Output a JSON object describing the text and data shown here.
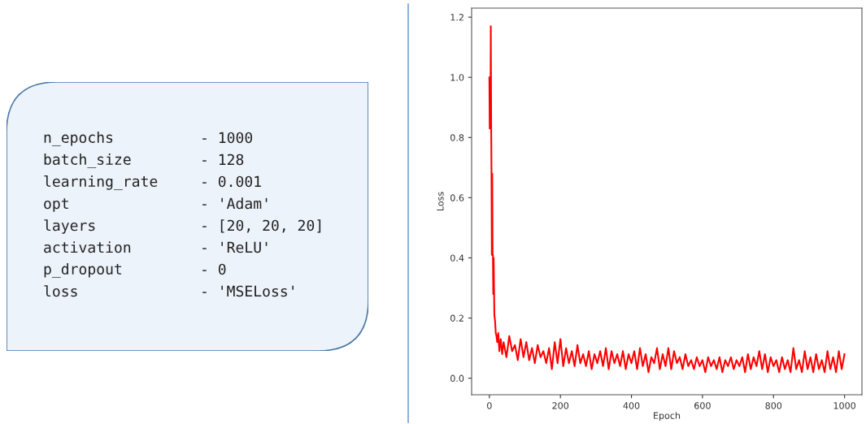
{
  "chart_data": [
    {
      "type": "other",
      "annotations": [
        "n_epochs",
        "- 1000",
        "batch_size",
        "- 128",
        "learning_rate",
        "- 0.001",
        "opt",
        "- 'Adam'",
        "layers",
        "- [20, 20, 20]",
        "activation",
        "- 'ReLU'",
        "p_dropout",
        "- 0",
        "loss",
        "- 'MSELoss'"
      ]
    },
    {
      "type": "line",
      "xlabel": "Epoch",
      "ylabel": "Loss",
      "xlim": [
        -50,
        1049
      ],
      "ylim": [
        -0.055,
        1.23
      ],
      "xticks": [
        0,
        200,
        400,
        600,
        800,
        1000
      ],
      "yticks": [
        {
          "value": 0,
          "label": "0.0"
        },
        {
          "value": 0.2,
          "label": "0.2"
        },
        {
          "value": 0.4,
          "label": "0.4"
        },
        {
          "value": 0.6,
          "label": "0.6"
        },
        {
          "value": 0.8,
          "label": "0.8"
        },
        {
          "value": 1.0,
          "label": "1.0"
        },
        {
          "value": 1.2,
          "label": "1.2"
        }
      ],
      "marker": "none",
      "line_style": "solid",
      "series": [
        {
          "color": "#ff0000",
          "x": [
            0,
            1,
            2,
            3,
            4,
            5,
            6,
            7,
            8,
            9,
            10,
            11,
            12,
            14,
            16,
            18,
            20,
            22,
            25,
            28,
            32,
            36,
            40,
            48,
            56,
            64,
            72,
            80,
            88,
            96,
            104,
            112,
            120,
            128,
            136,
            144,
            152,
            160,
            168,
            176,
            184,
            192,
            200,
            208,
            216,
            224,
            232,
            240,
            248,
            256,
            264,
            272,
            280,
            288,
            296,
            304,
            312,
            320,
            328,
            336,
            344,
            352,
            360,
            368,
            376,
            384,
            392,
            400,
            408,
            416,
            424,
            432,
            440,
            448,
            456,
            464,
            472,
            480,
            488,
            496,
            504,
            512,
            520,
            528,
            536,
            544,
            552,
            560,
            568,
            576,
            584,
            592,
            600,
            608,
            616,
            624,
            632,
            640,
            648,
            656,
            664,
            672,
            680,
            688,
            696,
            704,
            712,
            720,
            728,
            736,
            744,
            752,
            760,
            768,
            776,
            784,
            792,
            800,
            808,
            816,
            824,
            832,
            840,
            848,
            856,
            864,
            872,
            880,
            888,
            896,
            904,
            912,
            920,
            928,
            936,
            944,
            952,
            960,
            968,
            976,
            984,
            992,
            1000
          ],
          "values": [
            1.0,
            0.83,
            1.0,
            0.84,
            1.17,
            0.85,
            0.68,
            0.41,
            0.68,
            0.41,
            0.41,
            0.28,
            0.4,
            0.21,
            0.19,
            0.15,
            0.14,
            0.12,
            0.15,
            0.09,
            0.13,
            0.08,
            0.12,
            0.07,
            0.14,
            0.09,
            0.11,
            0.06,
            0.13,
            0.07,
            0.12,
            0.06,
            0.1,
            0.05,
            0.11,
            0.07,
            0.09,
            0.05,
            0.1,
            0.03,
            0.12,
            0.05,
            0.13,
            0.04,
            0.1,
            0.05,
            0.09,
            0.04,
            0.11,
            0.05,
            0.08,
            0.04,
            0.09,
            0.03,
            0.08,
            0.05,
            0.09,
            0.04,
            0.1,
            0.03,
            0.09,
            0.05,
            0.08,
            0.04,
            0.09,
            0.03,
            0.08,
            0.05,
            0.09,
            0.03,
            0.1,
            0.04,
            0.08,
            0.02,
            0.07,
            0.05,
            0.1,
            0.03,
            0.08,
            0.04,
            0.1,
            0.03,
            0.09,
            0.05,
            0.07,
            0.03,
            0.08,
            0.04,
            0.06,
            0.03,
            0.07,
            0.04,
            0.06,
            0.02,
            0.07,
            0.04,
            0.06,
            0.03,
            0.07,
            0.02,
            0.06,
            0.04,
            0.07,
            0.03,
            0.06,
            0.04,
            0.07,
            0.02,
            0.08,
            0.03,
            0.07,
            0.04,
            0.09,
            0.03,
            0.08,
            0.02,
            0.07,
            0.04,
            0.06,
            0.02,
            0.07,
            0.03,
            0.06,
            0.02,
            0.1,
            0.03,
            0.06,
            0.02,
            0.09,
            0.03,
            0.07,
            0.02,
            0.08,
            0.03,
            0.06,
            0.02,
            0.09,
            0.03,
            0.07,
            0.02,
            0.09,
            0.03,
            0.08
          ]
        }
      ]
    }
  ]
}
